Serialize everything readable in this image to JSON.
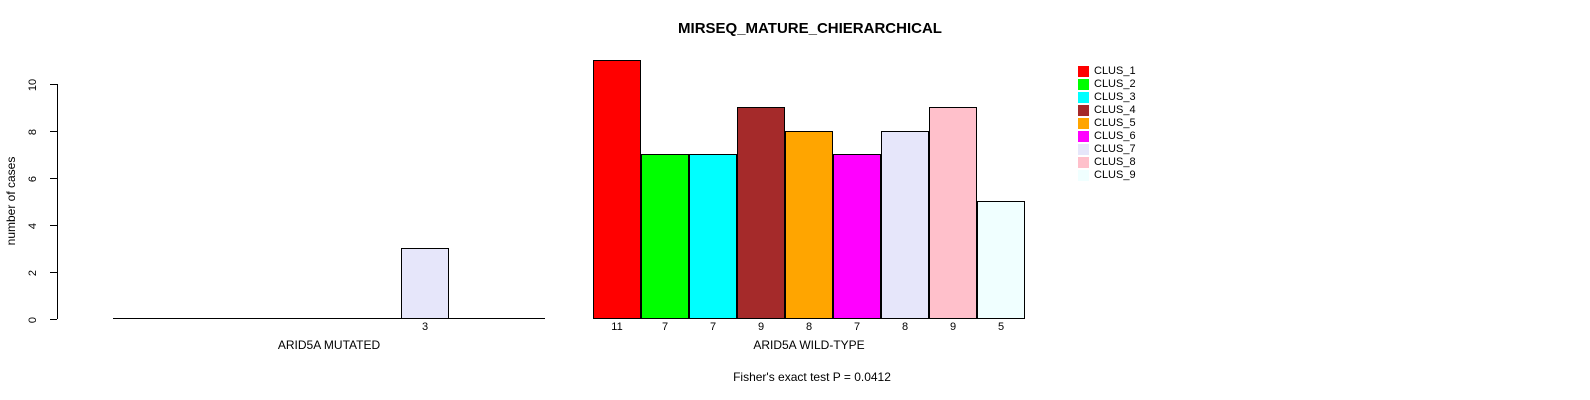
{
  "title": "MIRSEQ_MATURE_CHIERARCHICAL",
  "chart_data": {
    "type": "bar",
    "title": "MIRSEQ_MATURE_CHIERARCHICAL",
    "ylabel": "number of cases",
    "ylim": [
      0,
      10
    ],
    "yticks": [
      0,
      2,
      4,
      6,
      8,
      10
    ],
    "grid": false,
    "legend_position": "right",
    "clusters": [
      {
        "name": "CLUS_1",
        "color": "#FF0000"
      },
      {
        "name": "CLUS_2",
        "color": "#00FF00"
      },
      {
        "name": "CLUS_3",
        "color": "#00FFFF"
      },
      {
        "name": "CLUS_4",
        "color": "#A52A2A"
      },
      {
        "name": "CLUS_5",
        "color": "#FFA500"
      },
      {
        "name": "CLUS_6",
        "color": "#FF00FF"
      },
      {
        "name": "CLUS_7",
        "color": "#E6E6FA"
      },
      {
        "name": "CLUS_8",
        "color": "#FFC0CB"
      },
      {
        "name": "CLUS_9",
        "color": "#F0FFFF"
      }
    ],
    "groups": [
      {
        "label": "ARID5A MUTATED",
        "values": [
          0,
          0,
          0,
          0,
          0,
          0,
          3,
          0,
          0
        ]
      },
      {
        "label": "ARID5A WILD-TYPE",
        "values": [
          11,
          7,
          7,
          9,
          8,
          7,
          8,
          9,
          5
        ]
      }
    ],
    "annotation": "Fisher's exact test P = 0.0412"
  }
}
